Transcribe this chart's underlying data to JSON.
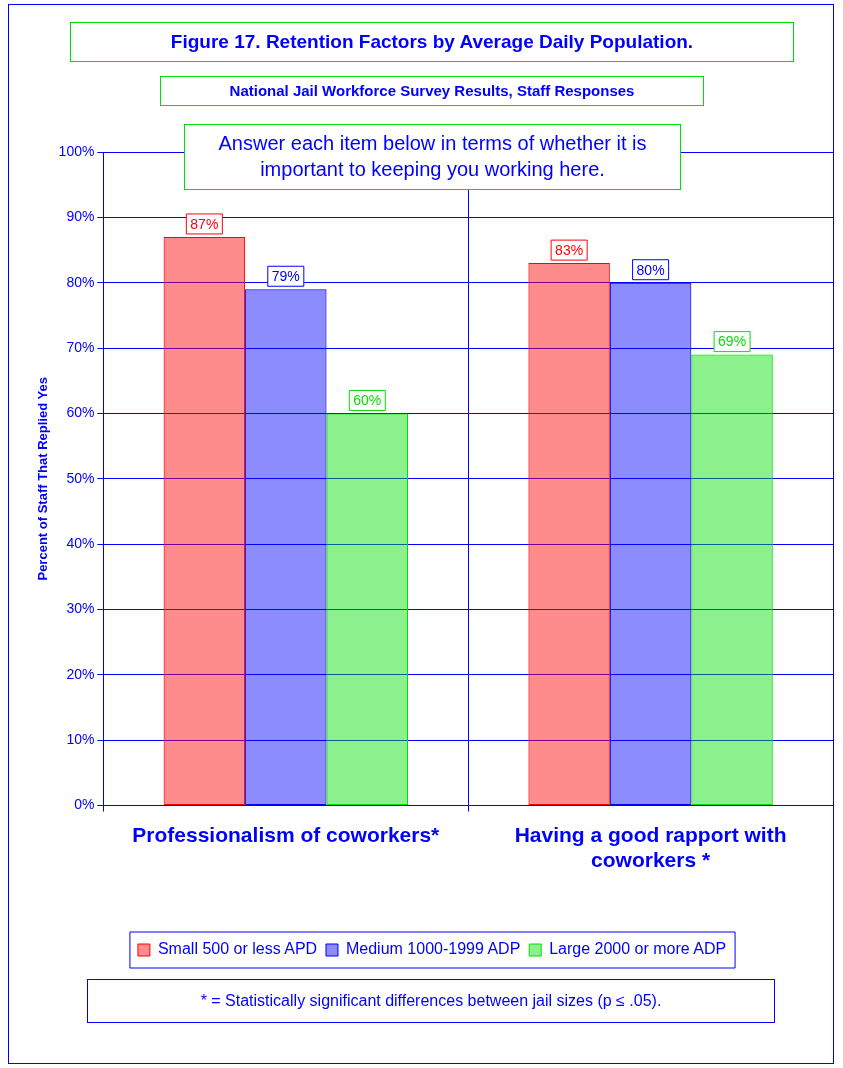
{
  "chart_data": {
    "type": "bar",
    "title": "Figure 17. Retention Factors by Average Daily Population.",
    "subtitle": "National Jail Workforce Survey Results, Staff Responses",
    "ylabel": "Percent of Staff That Replied Yes",
    "categories": [
      "Professionalism of coworkers*",
      "Having a good rapport with coworkers *"
    ],
    "series": [
      {
        "name": "Small 500 or less APD",
        "color": "#ff0000",
        "values": [
          87,
          83
        ],
        "value_labels": [
          "87%",
          "83%"
        ]
      },
      {
        "name": "Medium 1000-1999 ADP",
        "color": "#0000ff",
        "values": [
          79,
          80
        ],
        "value_labels": [
          "79%",
          "80%"
        ]
      },
      {
        "name": "Large 2000 or more ADP",
        "color": "#00e000",
        "values": [
          60,
          69
        ],
        "value_labels": [
          "60%",
          "69%"
        ]
      }
    ],
    "ylim": [
      0,
      100
    ],
    "yticks": [
      {
        "value": 0,
        "label": "0%"
      },
      {
        "value": 10,
        "label": "10%"
      },
      {
        "value": 20,
        "label": "20%"
      },
      {
        "value": 30,
        "label": "30%"
      },
      {
        "value": 40,
        "label": "40%"
      },
      {
        "value": 50,
        "label": "50%"
      },
      {
        "value": 60,
        "label": "60%"
      },
      {
        "value": 70,
        "label": "70%"
      },
      {
        "value": 80,
        "label": "80%"
      },
      {
        "value": 90,
        "label": "90%"
      },
      {
        "value": 100,
        "label": "100%"
      }
    ],
    "grid": true,
    "legend": "bottom",
    "annotations": [
      "Answer each item below in terms of whether it is important to keeping you working here.",
      "* = Statistically significant differences between jail sizes (p ≤ .05)."
    ]
  }
}
